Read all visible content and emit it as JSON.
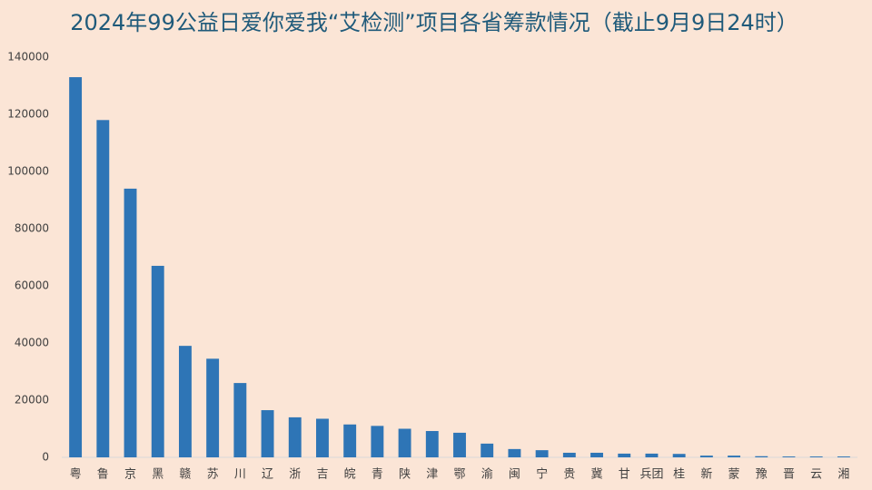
{
  "chart_data": {
    "type": "bar",
    "title": "2024年99公益日爱你爱我“艾检测”项目各省筹款情况（截止9月9日24时）",
    "categories": [
      "粤",
      "鲁",
      "京",
      "黑",
      "赣",
      "苏",
      "川",
      "辽",
      "浙",
      "吉",
      "皖",
      "青",
      "陕",
      "津",
      "鄂",
      "渝",
      "闽",
      "宁",
      "贵",
      "冀",
      "甘",
      "兵团",
      "桂",
      "新",
      "蒙",
      "豫",
      "晋",
      "云",
      "湘"
    ],
    "values": [
      133000,
      118000,
      94000,
      67000,
      39000,
      34500,
      26000,
      16500,
      14000,
      13500,
      11500,
      11000,
      10000,
      9200,
      8600,
      4800,
      2900,
      2500,
      1600,
      1600,
      1300,
      1300,
      1200,
      600,
      600,
      400,
      300,
      300,
      300
    ],
    "color": "#2e75b6",
    "ylim": [
      0,
      140000
    ],
    "yticks": [
      0,
      20000,
      40000,
      60000,
      80000,
      100000,
      120000,
      140000
    ],
    "grid": false
  }
}
